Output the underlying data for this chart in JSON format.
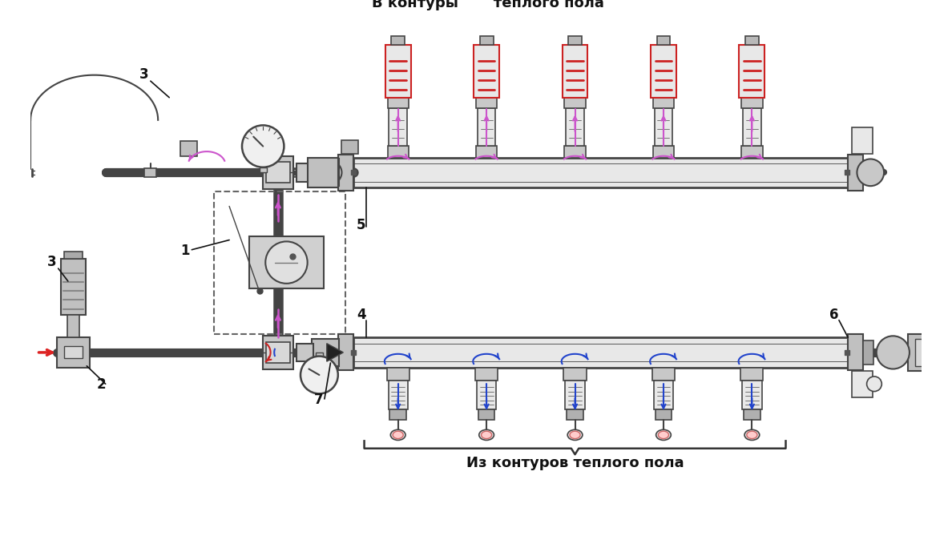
{
  "bg_color": "#ffffff",
  "line_color": "#000000",
  "gray_fill": "#d8d8d8",
  "light_gray": "#e8e8e8",
  "dark_gray": "#888888",
  "pink": "#cc55cc",
  "red": "#cc2222",
  "blue": "#2244cc",
  "red_flow": "#dd2222",
  "stroke": "#444444",
  "text_top": "В контуры       теплого пола",
  "text_bottom": "Из контуров теплого пола",
  "num_loops": 5,
  "labels": [
    "1",
    "2",
    "3",
    "4",
    "5",
    "6",
    "7"
  ]
}
